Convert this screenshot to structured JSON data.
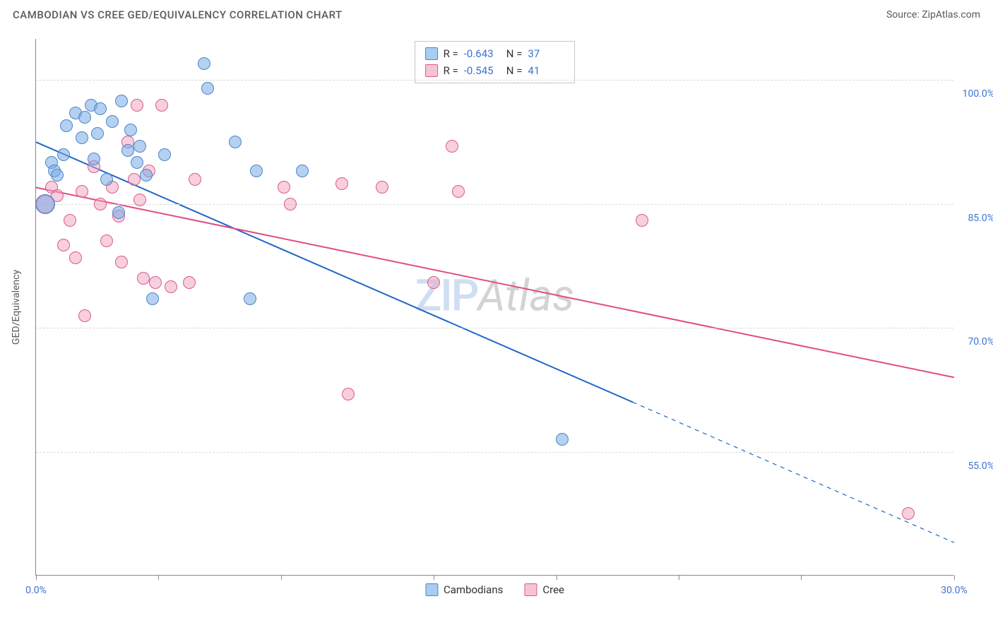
{
  "header": {
    "title": "CAMBODIAN VS CREE GED/EQUIVALENCY CORRELATION CHART",
    "source": "Source: ZipAtlas.com"
  },
  "watermark": {
    "zip": "ZIP",
    "atlas": "Atlas"
  },
  "chart": {
    "type": "scatter",
    "y_axis_label": "GED/Equivalency",
    "background_color": "#ffffff",
    "grid_color": "#d8d8d8",
    "axis_color": "#888888",
    "x_range": [
      0,
      30
    ],
    "y_range": [
      40,
      105
    ],
    "y_ticks": [
      {
        "value": 100,
        "label": "100.0%"
      },
      {
        "value": 85,
        "label": "85.0%"
      },
      {
        "value": 70,
        "label": "70.0%"
      },
      {
        "value": 55,
        "label": "55.0%"
      }
    ],
    "x_ticks": [
      {
        "value": 0,
        "label": "0.0%"
      },
      {
        "value": 4,
        "label": ""
      },
      {
        "value": 8,
        "label": ""
      },
      {
        "value": 13,
        "label": ""
      },
      {
        "value": 17,
        "label": ""
      },
      {
        "value": 21,
        "label": ""
      },
      {
        "value": 25,
        "label": ""
      },
      {
        "value": 30,
        "label": "30.0%"
      }
    ],
    "series": [
      {
        "name": "Cambodians",
        "marker_fill": "rgba(120,170,230,0.55)",
        "marker_stroke": "#4a86c7",
        "marker_radius": 9,
        "swatch_fill": "#a9cdf0",
        "swatch_stroke": "#4a86c7",
        "trend_color": "#1f66c9",
        "trend_width": 2,
        "trend_solid": {
          "x1": 0,
          "y1": 92.5,
          "x2": 19.5,
          "y2": 61
        },
        "trend_dashed_to": {
          "x2": 30,
          "y2": 44
        },
        "stats": {
          "R_label": "R =",
          "R": "-0.643",
          "N_label": "N =",
          "N": "37"
        },
        "points": [
          {
            "x": 0.3,
            "y": 85,
            "r": 14
          },
          {
            "x": 0.5,
            "y": 90
          },
          {
            "x": 0.6,
            "y": 89
          },
          {
            "x": 0.7,
            "y": 88.5
          },
          {
            "x": 0.9,
            "y": 91
          },
          {
            "x": 1.0,
            "y": 94.5
          },
          {
            "x": 1.3,
            "y": 96
          },
          {
            "x": 1.5,
            "y": 93
          },
          {
            "x": 1.6,
            "y": 95.5
          },
          {
            "x": 1.8,
            "y": 97
          },
          {
            "x": 1.9,
            "y": 90.5
          },
          {
            "x": 2.0,
            "y": 93.5
          },
          {
            "x": 2.1,
            "y": 96.5
          },
          {
            "x": 2.3,
            "y": 88
          },
          {
            "x": 2.5,
            "y": 95
          },
          {
            "x": 2.7,
            "y": 84
          },
          {
            "x": 2.8,
            "y": 97.5
          },
          {
            "x": 3.0,
            "y": 91.5
          },
          {
            "x": 3.1,
            "y": 94
          },
          {
            "x": 3.3,
            "y": 90
          },
          {
            "x": 3.4,
            "y": 92
          },
          {
            "x": 3.6,
            "y": 88.5
          },
          {
            "x": 3.8,
            "y": 73.5
          },
          {
            "x": 4.2,
            "y": 91
          },
          {
            "x": 5.5,
            "y": 102
          },
          {
            "x": 5.6,
            "y": 99
          },
          {
            "x": 6.5,
            "y": 92.5
          },
          {
            "x": 7.0,
            "y": 73.5
          },
          {
            "x": 7.2,
            "y": 89
          },
          {
            "x": 8.7,
            "y": 89
          },
          {
            "x": 17.2,
            "y": 56.5
          }
        ]
      },
      {
        "name": "Cree",
        "marker_fill": "rgba(240,160,190,0.5)",
        "marker_stroke": "#d95b8a",
        "marker_radius": 9,
        "swatch_fill": "#f6c4d6",
        "swatch_stroke": "#d95b8a",
        "trend_color": "#e04d84",
        "trend_width": 2,
        "trend_solid": {
          "x1": 0,
          "y1": 87,
          "x2": 30,
          "y2": 64
        },
        "stats": {
          "R_label": "R =",
          "R": "-0.545",
          "N_label": "N =",
          "N": "41"
        },
        "points": [
          {
            "x": 0.3,
            "y": 85,
            "r": 13
          },
          {
            "x": 0.5,
            "y": 87
          },
          {
            "x": 0.7,
            "y": 86
          },
          {
            "x": 0.9,
            "y": 80
          },
          {
            "x": 1.1,
            "y": 83
          },
          {
            "x": 1.3,
            "y": 78.5
          },
          {
            "x": 1.5,
            "y": 86.5
          },
          {
            "x": 1.6,
            "y": 71.5
          },
          {
            "x": 1.9,
            "y": 89.5
          },
          {
            "x": 2.1,
            "y": 85
          },
          {
            "x": 2.3,
            "y": 80.5
          },
          {
            "x": 2.5,
            "y": 87
          },
          {
            "x": 2.7,
            "y": 83.5
          },
          {
            "x": 2.8,
            "y": 78
          },
          {
            "x": 3.0,
            "y": 92.5
          },
          {
            "x": 3.2,
            "y": 88
          },
          {
            "x": 3.3,
            "y": 97
          },
          {
            "x": 3.4,
            "y": 85.5
          },
          {
            "x": 3.5,
            "y": 76
          },
          {
            "x": 3.7,
            "y": 89
          },
          {
            "x": 3.9,
            "y": 75.5
          },
          {
            "x": 4.1,
            "y": 97
          },
          {
            "x": 4.4,
            "y": 75
          },
          {
            "x": 5.0,
            "y": 75.5
          },
          {
            "x": 5.2,
            "y": 88
          },
          {
            "x": 8.1,
            "y": 87
          },
          {
            "x": 8.3,
            "y": 85
          },
          {
            "x": 10.0,
            "y": 87.5
          },
          {
            "x": 10.2,
            "y": 62
          },
          {
            "x": 11.3,
            "y": 87
          },
          {
            "x": 13.0,
            "y": 75.5
          },
          {
            "x": 13.6,
            "y": 92
          },
          {
            "x": 13.8,
            "y": 86.5
          },
          {
            "x": 19.8,
            "y": 83
          },
          {
            "x": 28.5,
            "y": 47.5
          }
        ]
      }
    ]
  }
}
